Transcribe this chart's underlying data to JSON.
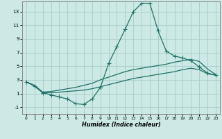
{
  "title": "",
  "xlabel": "Humidex (Indice chaleur)",
  "xlim": [
    -0.5,
    23.5
  ],
  "ylim": [
    -2,
    14.5
  ],
  "yticks": [
    -1,
    1,
    3,
    5,
    7,
    9,
    11,
    13
  ],
  "xticks": [
    0,
    1,
    2,
    3,
    4,
    5,
    6,
    7,
    8,
    9,
    10,
    11,
    12,
    13,
    14,
    15,
    16,
    17,
    18,
    19,
    20,
    21,
    22,
    23
  ],
  "background_color": "#cce9e5",
  "grid_color": "#aacfcb",
  "line_color": "#1e7068",
  "line1_x": [
    0,
    1,
    2,
    3,
    4,
    5,
    6,
    7,
    8,
    9,
    10,
    11,
    12,
    13,
    14,
    15,
    16,
    17,
    18,
    19,
    20,
    21,
    22,
    23
  ],
  "line1_y": [
    2.7,
    2.1,
    1.1,
    0.8,
    0.5,
    0.2,
    -0.5,
    -0.6,
    0.2,
    1.9,
    5.4,
    7.9,
    10.4,
    13.0,
    14.2,
    14.2,
    10.2,
    7.2,
    6.5,
    6.2,
    5.8,
    4.9,
    4.0,
    3.7
  ],
  "line2_x": [
    0,
    1,
    2,
    3,
    4,
    5,
    6,
    7,
    8,
    9,
    10,
    11,
    12,
    13,
    14,
    15,
    16,
    17,
    18,
    19,
    20,
    21,
    22,
    23
  ],
  "line2_y": [
    2.7,
    2.2,
    1.2,
    1.3,
    1.5,
    1.7,
    1.9,
    2.2,
    2.5,
    3.0,
    3.4,
    3.8,
    4.2,
    4.5,
    4.7,
    4.9,
    5.1,
    5.3,
    5.6,
    5.8,
    6.0,
    5.7,
    4.6,
    3.8
  ],
  "line3_x": [
    0,
    1,
    2,
    3,
    4,
    5,
    6,
    7,
    8,
    9,
    10,
    11,
    12,
    13,
    14,
    15,
    16,
    17,
    18,
    19,
    20,
    21,
    22,
    23
  ],
  "line3_y": [
    2.7,
    2.1,
    1.1,
    1.1,
    1.2,
    1.3,
    1.4,
    1.5,
    1.7,
    2.0,
    2.3,
    2.6,
    2.9,
    3.2,
    3.4,
    3.6,
    3.8,
    4.0,
    4.2,
    4.5,
    4.7,
    4.5,
    3.9,
    3.7
  ]
}
